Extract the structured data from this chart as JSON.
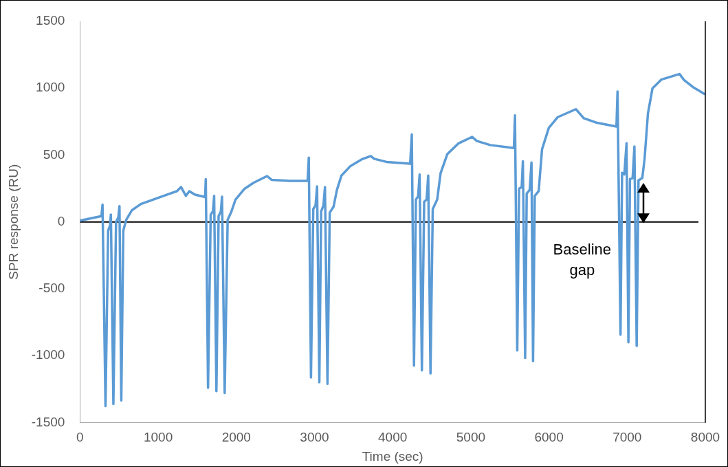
{
  "chart_data": {
    "type": "line",
    "xlabel": "Time (sec)",
    "ylabel": "SPR response (RU)",
    "xlim": [
      0,
      8000
    ],
    "xticks": [
      0,
      1000,
      2000,
      3000,
      4000,
      5000,
      6000,
      7000,
      8000
    ],
    "ylim": [
      -1500,
      1500
    ],
    "yticks": [
      -1500,
      -1000,
      -500,
      0,
      500,
      1000,
      1500
    ],
    "grid": false,
    "legend": false,
    "marker": "none",
    "line_style": "solid",
    "series": [
      {
        "color": "#5b9bd5",
        "x": [
          0,
          274,
          288,
          326,
          360,
          384,
          395,
          427,
          461,
          490,
          505,
          528,
          554,
          591,
          663,
          779,
          1067,
          1240,
          1292,
          1355,
          1398,
          1471,
          1600,
          1609,
          1638,
          1672,
          1701,
          1716,
          1745,
          1773,
          1802,
          1817,
          1851,
          1889,
          1932,
          1990,
          2105,
          2220,
          2393,
          2451,
          2682,
          2912,
          2927,
          2955,
          2984,
          3013,
          3033,
          3062,
          3085,
          3114,
          3134,
          3166,
          3195,
          3244,
          3287,
          3345,
          3460,
          3604,
          3720,
          3763,
          3921,
          4224,
          4245,
          4273,
          4297,
          4325,
          4345,
          4374,
          4403,
          4434,
          4455,
          4484,
          4513,
          4570,
          4613,
          4700,
          4844,
          5017,
          5075,
          5248,
          5551,
          5565,
          5594,
          5617,
          5651,
          5666,
          5695,
          5715,
          5753,
          5776,
          5796,
          5818,
          5868,
          5911,
          5998,
          6113,
          6344,
          6445,
          6603,
          6863,
          6877,
          6915,
          6935,
          6964,
          6992,
          7016,
          7036,
          7070,
          7093,
          7122,
          7145,
          7194,
          7223,
          7266,
          7324,
          7439,
          7670,
          7728,
          7843,
          7987,
          8000
        ],
        "values": [
          10,
          43,
          129,
          -1377,
          -64,
          -27,
          55,
          -1361,
          0,
          34,
          118,
          -1335,
          -64,
          16,
          87,
          134,
          195,
          230,
          261,
          195,
          230,
          204,
          186,
          320,
          -1240,
          54,
          80,
          195,
          -1265,
          43,
          80,
          189,
          -1279,
          16,
          70,
          168,
          248,
          293,
          343,
          315,
          307,
          307,
          481,
          -1163,
          96,
          123,
          266,
          -1199,
          79,
          123,
          261,
          -1211,
          70,
          114,
          240,
          347,
          418,
          468,
          493,
          472,
          449,
          436,
          654,
          -1074,
          168,
          189,
          355,
          -1110,
          150,
          168,
          347,
          -1133,
          96,
          168,
          364,
          508,
          588,
          636,
          606,
          575,
          552,
          797,
          -961,
          248,
          261,
          454,
          -1017,
          213,
          240,
          445,
          -1040,
          195,
          230,
          543,
          704,
          784,
          843,
          776,
          743,
          713,
          976,
          -842,
          368,
          355,
          588,
          -900,
          320,
          327,
          564,
          -927,
          311,
          329,
          472,
          811,
          999,
          1065,
          1106,
          1061,
          1008,
          958,
          955
        ]
      }
    ],
    "ref_lines": [
      {
        "axis": "y",
        "value": 0,
        "color": "#000000"
      }
    ],
    "annotations": [
      "Baseline gap"
    ]
  }
}
